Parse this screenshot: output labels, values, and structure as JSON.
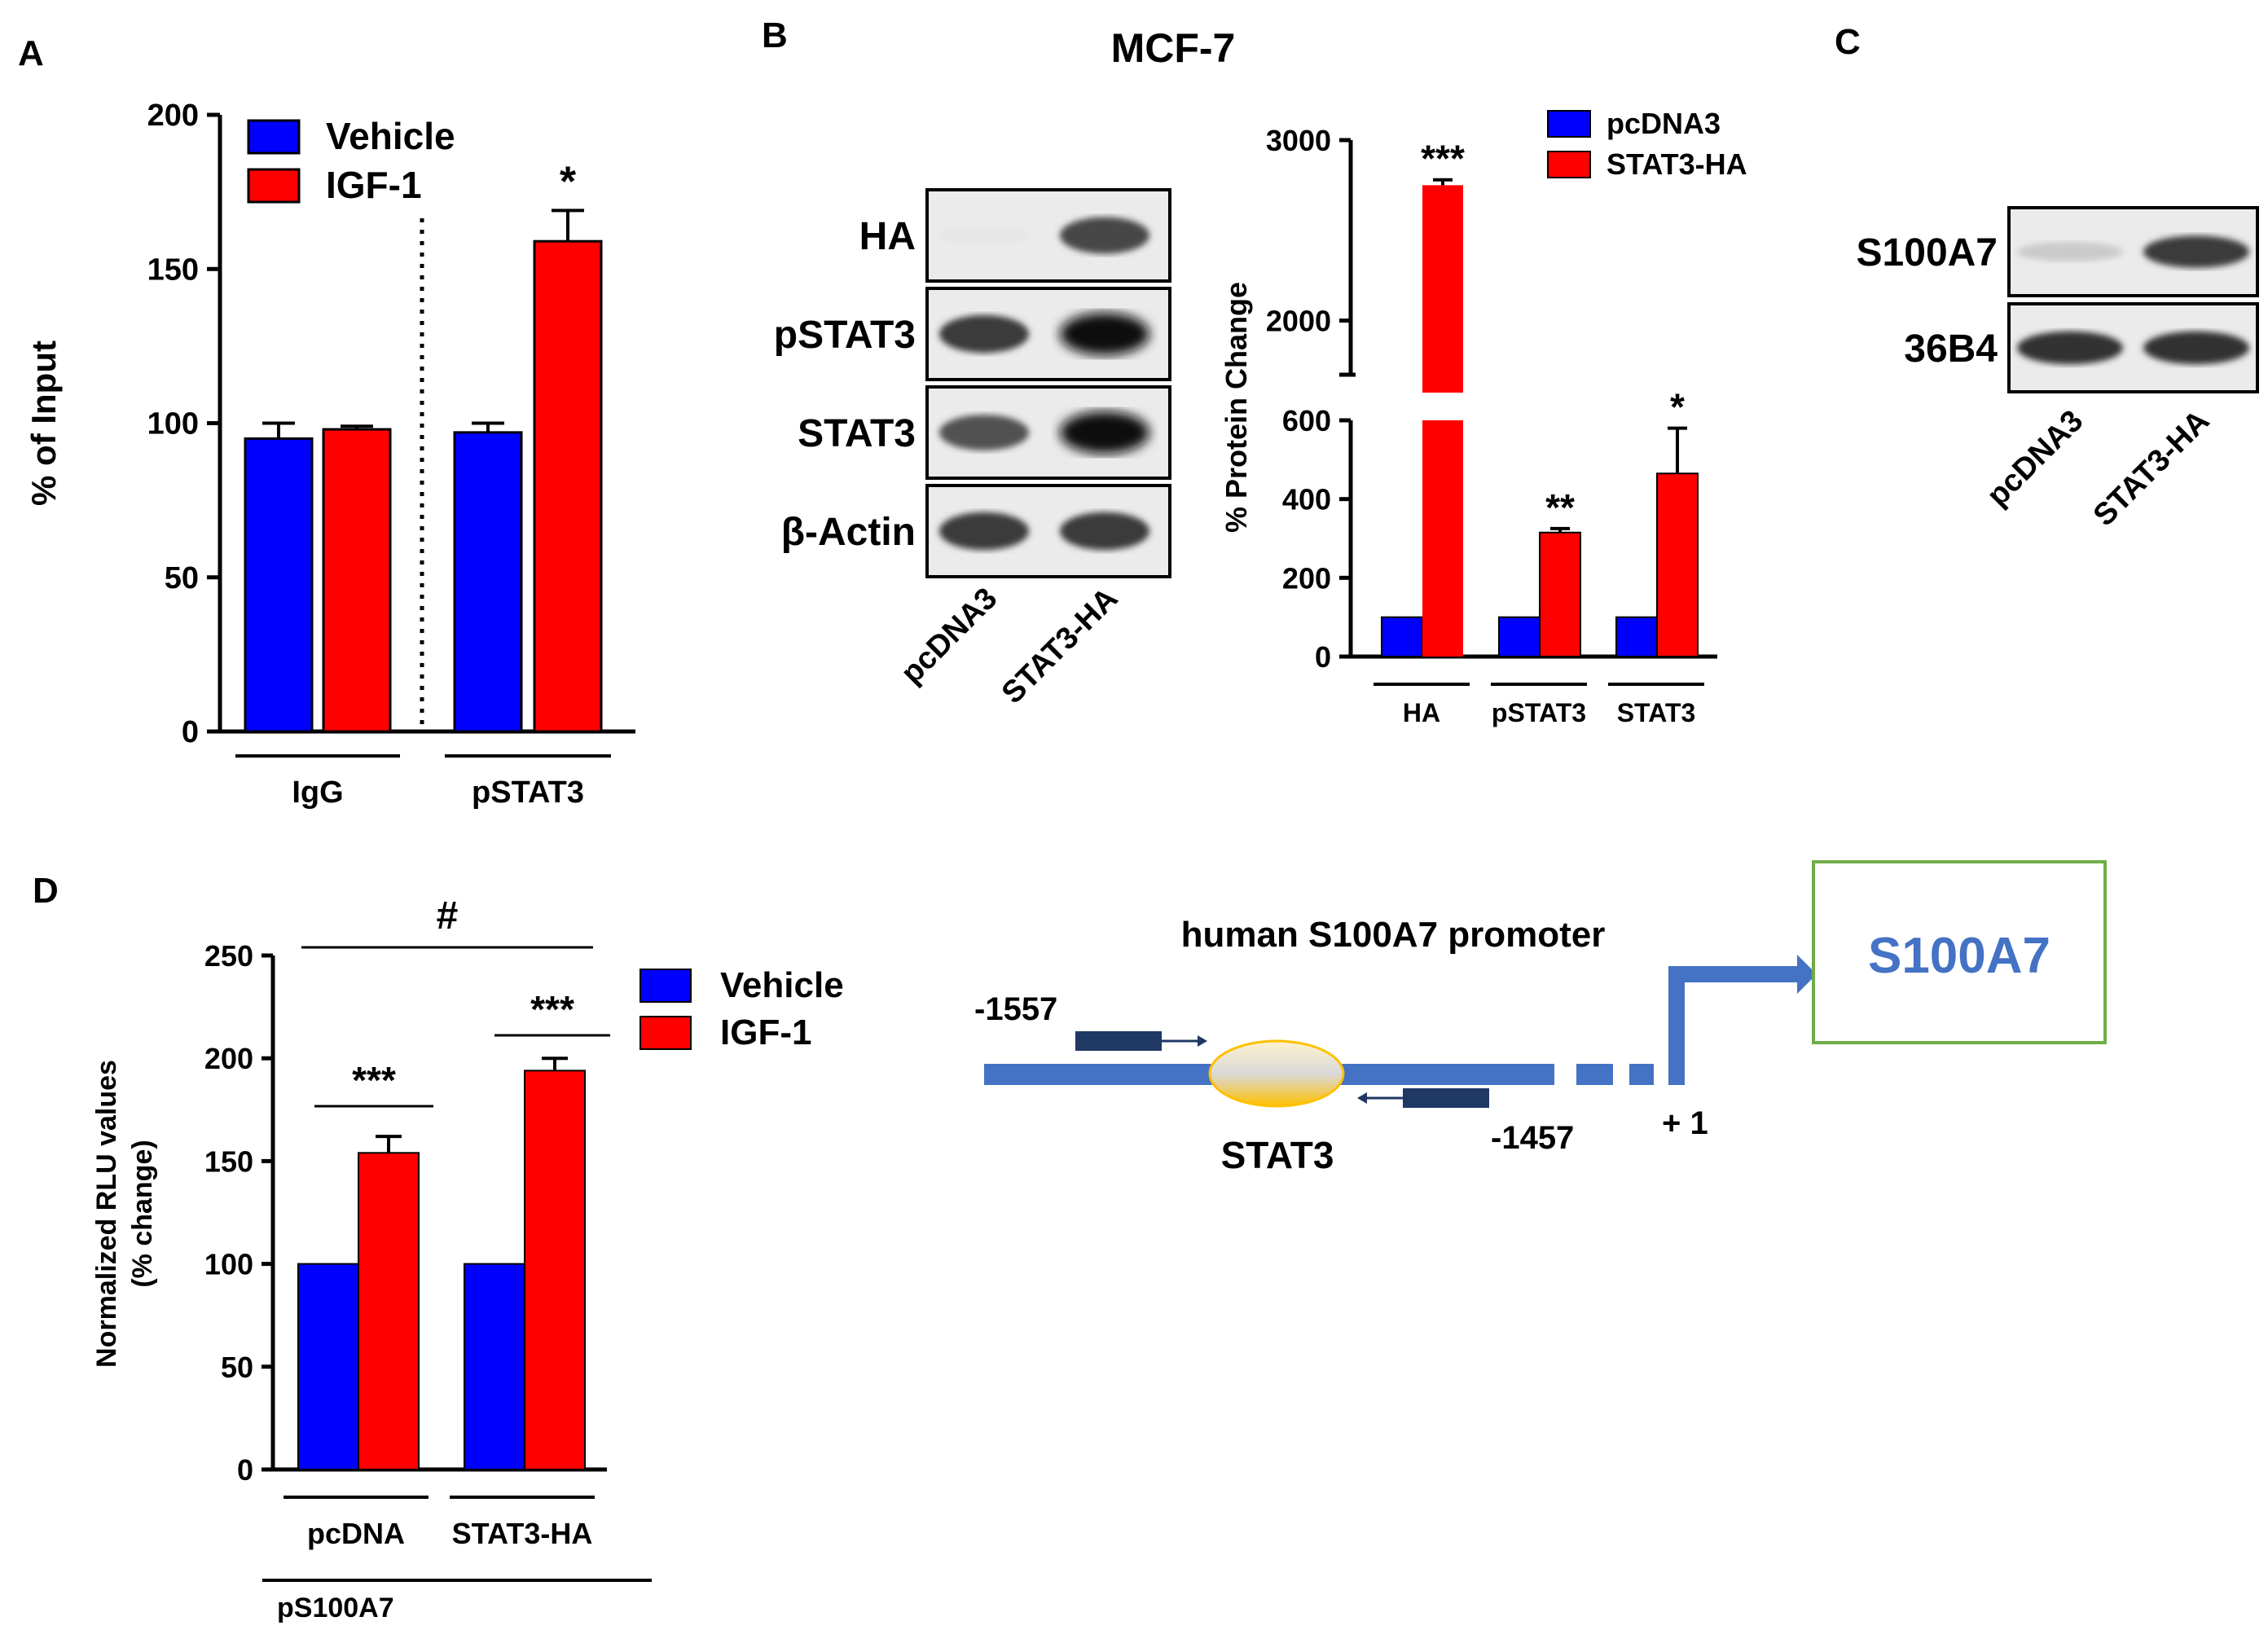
{
  "panels": {
    "A": {
      "letter": "A",
      "chart_data": {
        "type": "bar",
        "ylabel": "% of Input",
        "ylim": [
          0,
          200
        ],
        "yticks": [
          0,
          50,
          100,
          150,
          200
        ],
        "groups": [
          "IgG",
          "pSTAT3"
        ],
        "series": [
          {
            "name": "Vehicle",
            "color": "#0000ff",
            "values": [
              95,
              97
            ],
            "errors": [
              5,
              3
            ]
          },
          {
            "name": "IGF-1",
            "color": "#ff0000",
            "values": [
              98,
              159
            ],
            "errors": [
              1,
              10
            ]
          }
        ],
        "annotations": [
          {
            "group": "pSTAT3",
            "series": "IGF-1",
            "text": "*"
          }
        ],
        "divider": "dotted line between IgG and pSTAT3"
      }
    },
    "B": {
      "letter": "B",
      "title": "MCF-7",
      "blot": {
        "rows": [
          "HA",
          "pSTAT3",
          "STAT3",
          "β-Actin"
        ],
        "lanes": [
          "pcDNA3",
          "STAT3-HA"
        ],
        "band_intensity": [
          [
            0.02,
            0.75
          ],
          [
            0.8,
            1.0
          ],
          [
            0.7,
            1.0
          ],
          [
            0.8,
            0.8
          ]
        ]
      },
      "chart_data": {
        "type": "bar",
        "ylabel": "% Protein Change",
        "axis_break": [
          600,
          1700
        ],
        "yticks_low": [
          0,
          200,
          400,
          600
        ],
        "yticks_high": [
          2000,
          3000
        ],
        "groups": [
          "HA",
          "pSTAT3",
          "STAT3"
        ],
        "series": [
          {
            "name": "pcDNA3",
            "color": "#0000ff",
            "values": [
              100,
              100,
              100
            ],
            "errors": [
              0,
              0,
              0
            ]
          },
          {
            "name": "STAT3-HA",
            "color": "#ff0000",
            "values": [
              2750,
              315,
              465
            ],
            "errors": [
              30,
              10,
              115
            ]
          }
        ],
        "annotations": [
          {
            "group": "HA",
            "text": "***"
          },
          {
            "group": "pSTAT3",
            "text": "**"
          },
          {
            "group": "STAT3",
            "text": "*"
          }
        ]
      }
    },
    "C": {
      "letter": "C",
      "blot": {
        "rows": [
          "S100A7",
          "36B4"
        ],
        "lanes": [
          "pcDNA3",
          "STAT3-HA"
        ],
        "band_intensity": [
          [
            0.15,
            0.8
          ],
          [
            0.85,
            0.85
          ]
        ]
      }
    },
    "D": {
      "letter": "D",
      "chart_data": {
        "type": "bar",
        "ylabel_lines": [
          "Normalized RLU values",
          "(% change)"
        ],
        "ylim": [
          0,
          250
        ],
        "yticks": [
          0,
          50,
          100,
          150,
          200,
          250
        ],
        "groups": [
          "pcDNA",
          "STAT3-HA"
        ],
        "group_caption": "pS100A7",
        "series": [
          {
            "name": "Vehicle",
            "color": "#0000ff",
            "values": [
              100,
              100
            ],
            "errors": [
              0,
              0
            ]
          },
          {
            "name": "IGF-1",
            "color": "#ff0000",
            "values": [
              154,
              194
            ],
            "errors": [
              8,
              6
            ]
          }
        ],
        "annotations": [
          {
            "group": "pcDNA",
            "text": "***"
          },
          {
            "group": "STAT3-HA",
            "text": "***"
          },
          {
            "span": "all",
            "text": "#"
          }
        ]
      },
      "promoter": {
        "title": "human S100A7 promoter",
        "gene": "S100A7",
        "factor": "STAT3",
        "pos_left": "-1557",
        "pos_right": "-1457",
        "tss": "+ 1",
        "line_color": "#4472c4",
        "box_border": "#70ad47",
        "ellipse_color": "#ffc000"
      }
    }
  }
}
